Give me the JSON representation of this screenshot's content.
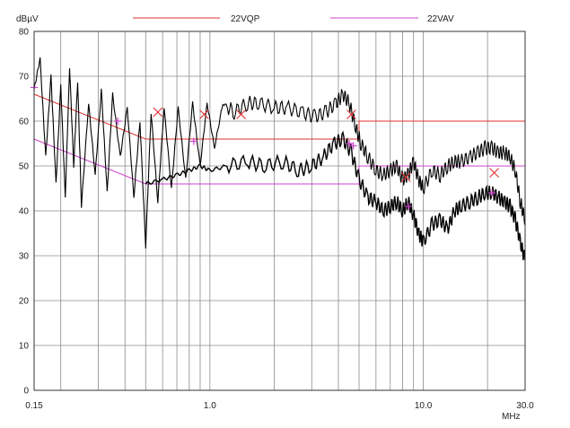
{
  "chart_data": {
    "type": "line",
    "title": "",
    "y_unit_label": "dBµV",
    "x_unit_label": "MHz",
    "x_scale": "log",
    "xlim": [
      0.15,
      30.0
    ],
    "ylim": [
      0,
      80
    ],
    "x_tick_labels": [
      "0.15",
      "1.0",
      "10.0",
      "30.0"
    ],
    "x_tick_values": [
      0.15,
      1.0,
      10.0,
      30.0
    ],
    "y_tick_labels": [
      "0",
      "10",
      "20",
      "30",
      "40",
      "50",
      "60",
      "70",
      "80"
    ],
    "y_tick_values": [
      0,
      10,
      20,
      30,
      40,
      50,
      60,
      70,
      80
    ],
    "grid": true,
    "legend_placement": "top",
    "legend": [
      {
        "name": "22VQP",
        "color": "#e03030"
      },
      {
        "name": "22VAV",
        "color": "#d040d0"
      }
    ],
    "colors": {
      "trace": "#000000",
      "qp_limit": "#e03030",
      "av_limit": "#d040d0",
      "grid": "#8c8c8c"
    },
    "limit_lines": [
      {
        "name": "22VQP",
        "points": [
          [
            0.15,
            66.0
          ],
          [
            0.5,
            56.0
          ],
          [
            5.0,
            56.0
          ],
          [
            5.0,
            60.0
          ],
          [
            30.0,
            60.0
          ]
        ]
      },
      {
        "name": "22VAV",
        "points": [
          [
            0.15,
            56.0
          ],
          [
            0.5,
            46.0
          ],
          [
            5.0,
            46.0
          ],
          [
            5.0,
            50.0
          ],
          [
            30.0,
            50.0
          ]
        ]
      }
    ],
    "series": [
      {
        "role": "peak_trace",
        "x": [
          0.15,
          0.16,
          0.17,
          0.18,
          0.19,
          0.2,
          0.21,
          0.22,
          0.23,
          0.24,
          0.25,
          0.27,
          0.29,
          0.31,
          0.33,
          0.35,
          0.38,
          0.41,
          0.44,
          0.47,
          0.5,
          0.53,
          0.57,
          0.61,
          0.66,
          0.71,
          0.77,
          0.83,
          0.9,
          0.97,
          1.05,
          1.15,
          1.3,
          1.5,
          1.7,
          2.0,
          2.3,
          2.7,
          3.1,
          3.5,
          3.9,
          4.2,
          4.5,
          4.8,
          5.1,
          5.5,
          6.0,
          6.5,
          7.0,
          7.5,
          8.0,
          8.5,
          9.0,
          9.5,
          10.0,
          11.0,
          12.0,
          13.0,
          14.0,
          15.0,
          16.5,
          18.0,
          19.5,
          21.0,
          22.5,
          24.0,
          25.5,
          27.0,
          28.5,
          30.0
        ],
        "y": [
          67,
          74,
          52,
          70,
          46,
          68,
          43,
          72,
          50,
          69,
          41,
          64,
          48,
          67,
          44,
          66,
          52,
          63,
          43,
          60,
          32,
          62,
          42,
          63,
          45,
          63,
          47,
          64,
          50,
          64,
          54,
          64,
          62,
          64,
          64,
          63,
          63,
          62,
          61,
          62,
          64,
          66,
          64,
          59,
          55,
          52,
          49,
          48,
          49,
          50,
          47,
          48,
          51,
          47,
          45,
          49,
          48,
          50,
          51,
          51,
          52,
          53,
          54,
          54,
          53,
          53,
          52,
          49,
          42,
          38
        ]
      },
      {
        "role": "average_trace",
        "x": [
          0.5,
          0.6,
          0.7,
          0.8,
          0.9,
          1.0,
          1.2,
          1.5,
          1.8,
          2.2,
          2.6,
          3.0,
          3.4,
          3.8,
          4.2,
          4.6,
          5.0,
          5.5,
          6.0,
          6.5,
          7.0,
          7.5,
          8.0,
          8.5,
          9.0,
          9.5,
          10.0,
          11.0,
          12.0,
          13.0,
          14.0,
          15.0,
          16.5,
          18.0,
          19.5,
          21.0,
          22.5,
          24.0,
          25.5,
          27.0,
          28.5,
          30.0
        ],
        "y": [
          46,
          47,
          48,
          49,
          50,
          49,
          50,
          51,
          50,
          51,
          49,
          50,
          52,
          55,
          56,
          53,
          47,
          43,
          42,
          40,
          41,
          42,
          40,
          42,
          39,
          35,
          33,
          37,
          38,
          36,
          40,
          41,
          42,
          43,
          44,
          44,
          43,
          42,
          41,
          38,
          33,
          29
        ]
      }
    ],
    "qp_markers": [
      {
        "x": 0.57,
        "y": 62.0
      },
      {
        "x": 0.94,
        "y": 61.5
      },
      {
        "x": 1.4,
        "y": 61.5
      },
      {
        "x": 4.6,
        "y": 61.5
      },
      {
        "x": 8.3,
        "y": 47.5
      },
      {
        "x": 21.5,
        "y": 48.5
      }
    ],
    "av_markers": [
      {
        "x": 0.15,
        "y": 67.5
      },
      {
        "x": 0.37,
        "y": 60.0
      },
      {
        "x": 0.84,
        "y": 55.5
      },
      {
        "x": 4.5,
        "y": 55.0
      },
      {
        "x": 4.7,
        "y": 54.5
      },
      {
        "x": 8.5,
        "y": 41.0
      },
      {
        "x": 21.0,
        "y": 44.0
      }
    ]
  }
}
